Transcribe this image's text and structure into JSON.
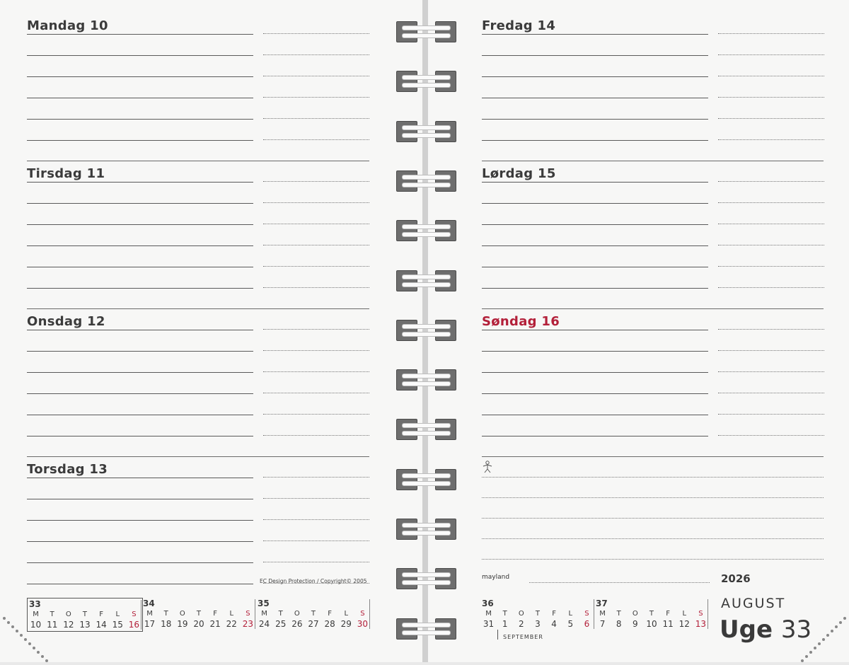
{
  "left_days": [
    {
      "title": "Mandag 10",
      "red": false
    },
    {
      "title": "Tirsdag 11",
      "red": false
    },
    {
      "title": "Onsdag 12",
      "red": false
    },
    {
      "title": "Torsdag 13",
      "red": false
    }
  ],
  "right_days": [
    {
      "title": "Fredag 14",
      "red": false
    },
    {
      "title": "Lørdag 15",
      "red": false
    },
    {
      "title": "Søndag 16",
      "red": true
    }
  ],
  "copyright": "EC Design Protection / Copyright© 2005",
  "brand": "mayland",
  "year": "2026",
  "month": "AUGUST",
  "week_label": "Uge",
  "week_number": "33",
  "september_label": "SEPTEMBER",
  "notes_icon": "person-icon",
  "colors": {
    "accent_red": "#b3203a",
    "text": "#3a3a3a",
    "paper": "#f7f7f6"
  },
  "mini_calendars": [
    {
      "week": "33",
      "letters": [
        "M",
        "T",
        "O",
        "T",
        "F",
        "L",
        "S"
      ],
      "days": [
        "10",
        "11",
        "12",
        "13",
        "14",
        "15",
        "16"
      ],
      "boxed": true
    },
    {
      "week": "34",
      "letters": [
        "M",
        "T",
        "O",
        "T",
        "F",
        "L",
        "S"
      ],
      "days": [
        "17",
        "18",
        "19",
        "20",
        "21",
        "22",
        "23"
      ],
      "boxed": false
    },
    {
      "week": "35",
      "letters": [
        "M",
        "T",
        "O",
        "T",
        "F",
        "L",
        "S"
      ],
      "days": [
        "24",
        "25",
        "26",
        "27",
        "28",
        "29",
        "30"
      ],
      "boxed": false
    },
    {
      "week": "36",
      "letters": [
        "M",
        "T",
        "O",
        "T",
        "F",
        "L",
        "S"
      ],
      "days": [
        "31",
        "1",
        "2",
        "3",
        "4",
        "5",
        "6"
      ],
      "boxed": false
    },
    {
      "week": "37",
      "letters": [
        "M",
        "T",
        "O",
        "T",
        "F",
        "L",
        "S"
      ],
      "days": [
        "7",
        "8",
        "9",
        "10",
        "11",
        "12",
        "13"
      ],
      "boxed": false
    }
  ]
}
